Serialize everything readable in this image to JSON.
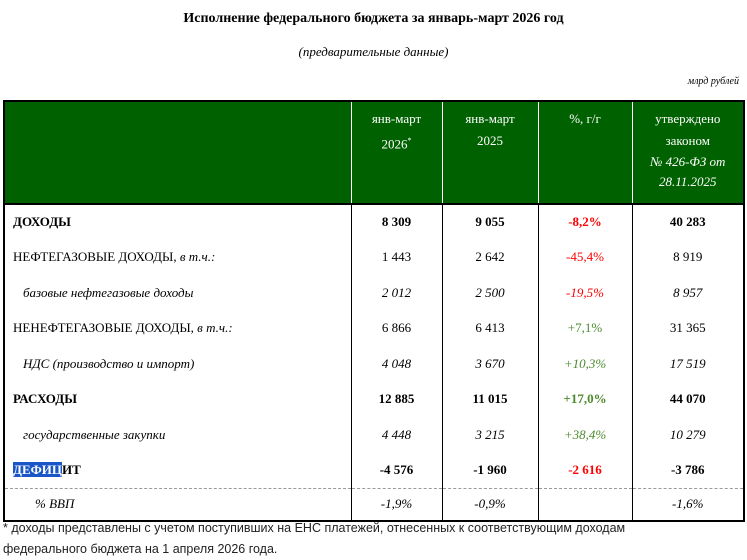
{
  "title": "Исполнение федерального бюджета за январь-март 2026 год",
  "subtitle": "(предварительные данные)",
  "units": "млрд рублей",
  "columns": {
    "c1_line1": "янв-март",
    "c1_line2": "2026",
    "c1_mark": "*",
    "c2_line1": "янв-март",
    "c2_line2": "2025",
    "c3": "%, г/г",
    "c4_line1": "утверждено",
    "c4_line2": "законом",
    "c4_line3": "№ 426-ФЗ от",
    "c4_line4": "28.11.2025"
  },
  "rows": [
    {
      "label": "ДОХОДЫ",
      "label_suffix": "",
      "v2026": "8 309",
      "v2025": "9 055",
      "pct": "-8,2%",
      "law": "40 283"
    },
    {
      "label": "НЕФТЕГАЗОВЫЕ ДОХОДЫ,",
      "label_suffix": " в т.ч.:",
      "v2026": "1 443",
      "v2025": "2 642",
      "pct": "-45,4%",
      "law": "8 919"
    },
    {
      "label": "базовые нефтегазовые доходы",
      "label_suffix": "",
      "v2026": "2 012",
      "v2025": "2 500",
      "pct": "-19,5%",
      "law": "8 957"
    },
    {
      "label": "НЕНЕФТЕГАЗОВЫЕ ДОХОДЫ,",
      "label_suffix": " в т.ч.:",
      "v2026": "6 866",
      "v2025": "6 413",
      "pct": "+7,1%",
      "law": "31 365"
    },
    {
      "label": "НДС (производство и импорт)",
      "label_suffix": "",
      "v2026": "4 048",
      "v2025": "3 670",
      "pct": "+10,3%",
      "law": "17 519"
    },
    {
      "label": "РАСХОДЫ",
      "label_suffix": "",
      "v2026": "12 885",
      "v2025": "11 015",
      "pct": "+17,0%",
      "law": "44 070"
    },
    {
      "label": "государственные закупки",
      "label_suffix": "",
      "v2026": "4 448",
      "v2025": "3 215",
      "pct": "+38,4%",
      "law": "10 279"
    },
    {
      "label_selected": "ДЕФИЦ",
      "label_rest": "ИТ",
      "v2026": "-4 576",
      "v2025": "-1 960",
      "pct": "-2 616",
      "law": "-3 786"
    },
    {
      "label": "% ВВП",
      "label_suffix": "",
      "v2026": "-1,9%",
      "v2025": "-0,9%",
      "pct": "",
      "law": "-1,6%"
    }
  ],
  "colors": {
    "header_bg": "#006100",
    "negative": "#ff0000",
    "positive": "#4d8a2d",
    "selection": "#1a56c7"
  },
  "footnote_line1": "* доходы представлены с учетом поступивших на ЕНС платежей, отнесенных к соответствующим доходам",
  "footnote_line2": "федерального бюджета на 1 апреля 2026 года."
}
